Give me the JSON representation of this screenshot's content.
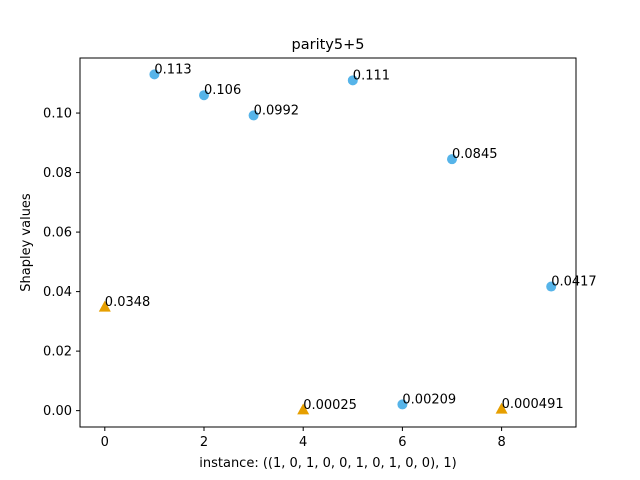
{
  "chart_data": {
    "type": "scatter",
    "title": "parity5+5",
    "xlabel": "instance: ((1, 0, 1, 0, 0, 1, 0, 1, 0, 0), 1)",
    "ylabel": "Shapley values",
    "xlim": [
      -0.5,
      9.5
    ],
    "ylim": [
      -0.0055,
      0.1185
    ],
    "xticks": [
      0,
      2,
      4,
      6,
      8
    ],
    "xtick_labels": [
      "0",
      "2",
      "4",
      "6",
      "8"
    ],
    "yticks": [
      0.0,
      0.02,
      0.04,
      0.06,
      0.08,
      0.1
    ],
    "ytick_labels": [
      "0.00",
      "0.02",
      "0.04",
      "0.06",
      "0.08",
      "0.10"
    ],
    "grid": false,
    "series": [
      {
        "marker": "circle",
        "color": "#56B4E9",
        "points": [
          {
            "x": 1,
            "y": 0.113,
            "label": "0.113"
          },
          {
            "x": 2,
            "y": 0.106,
            "label": "0.106"
          },
          {
            "x": 3,
            "y": 0.0992,
            "label": "0.0992"
          },
          {
            "x": 5,
            "y": 0.111,
            "label": "0.111"
          },
          {
            "x": 6,
            "y": 0.00209,
            "label": "0.00209"
          },
          {
            "x": 7,
            "y": 0.0845,
            "label": "0.0845"
          },
          {
            "x": 9,
            "y": 0.0417,
            "label": "0.0417"
          }
        ]
      },
      {
        "marker": "triangle",
        "color": "#E69F00",
        "points": [
          {
            "x": 0,
            "y": 0.0348,
            "label": "0.0348"
          },
          {
            "x": 4,
            "y": 0.00025,
            "label": "0.00025"
          },
          {
            "x": 8,
            "y": 0.000491,
            "label": "0.000491"
          }
        ]
      }
    ]
  }
}
